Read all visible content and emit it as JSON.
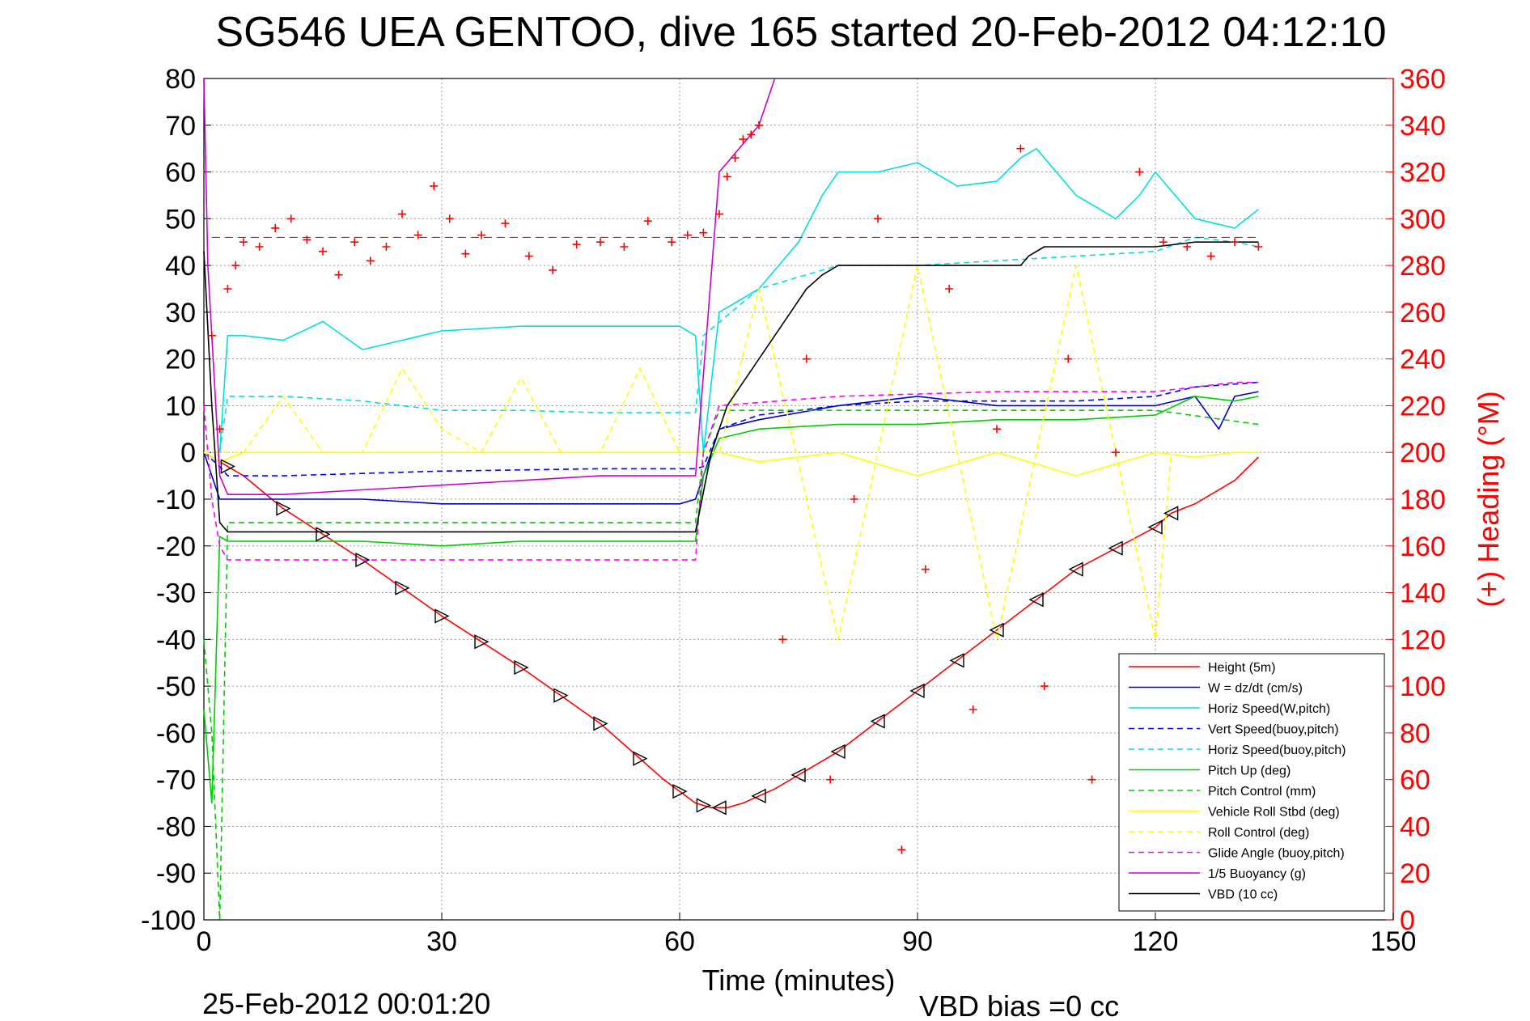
{
  "chart_data": {
    "type": "line",
    "title": "SG546 UEA GENTOO, dive 165 started 20-Feb-2012 04:12:10",
    "xlabel": "Time (minutes)",
    "ylabel": "",
    "y2label": "(+) Heading (°M)",
    "xlim": [
      0,
      150
    ],
    "ylim": [
      -100,
      80
    ],
    "y2lim": [
      0,
      360
    ],
    "xticks": [
      "0",
      "30",
      "60",
      "90",
      "120",
      "150"
    ],
    "yticks": [
      "80",
      "70",
      "60",
      "50",
      "40",
      "30",
      "20",
      "10",
      "0",
      "-10",
      "-20",
      "-30",
      "-40",
      "-50",
      "-60",
      "-70",
      "-80",
      "-90",
      "-100"
    ],
    "y2ticks": [
      "360",
      "340",
      "320",
      "300",
      "280",
      "260",
      "240",
      "220",
      "200",
      "180",
      "160",
      "140",
      "120",
      "100",
      "80",
      "60",
      "40",
      "20",
      "0"
    ],
    "grid": true,
    "legend_position": "bottom-right",
    "footer_date": "25-Feb-2012 00:01:20",
    "footer_bias": "VBD bias =0 cc",
    "series": [
      {
        "name": "Height (5m)",
        "color": "#ff0000",
        "style": "solid",
        "x": [
          0,
          2,
          5,
          10,
          20,
          30,
          40,
          50,
          58,
          62,
          64,
          66,
          68,
          72,
          80,
          90,
          100,
          110,
          120,
          122,
          125,
          130,
          133
        ],
        "y": [
          0,
          -2,
          -5,
          -12,
          -23,
          -35,
          -46,
          -58,
          -70,
          -75,
          -76,
          -76,
          -75,
          -72,
          -64,
          -51,
          -38,
          -25,
          -16,
          -13,
          -11,
          -6,
          -1
        ]
      },
      {
        "name": "W = dz/dt (cm/s)",
        "color": "#0000cc",
        "style": "solid",
        "x": [
          0,
          1,
          2,
          5,
          10,
          20,
          30,
          40,
          50,
          60,
          62,
          63,
          65,
          70,
          80,
          90,
          100,
          110,
          120,
          125,
          128,
          130,
          133
        ],
        "y": [
          0,
          -5,
          -10,
          -10,
          -10,
          -10,
          -11,
          -11,
          -11,
          -11,
          -10,
          -5,
          5,
          7,
          10,
          12,
          10,
          10,
          10,
          12,
          5,
          12,
          13
        ]
      },
      {
        "name": "Horiz Speed(W,pitch)",
        "color": "#00e0e0",
        "style": "solid",
        "x": [
          2,
          3,
          5,
          10,
          15,
          20,
          25,
          30,
          40,
          50,
          60,
          62,
          63,
          65,
          70,
          75,
          78,
          80,
          85,
          90,
          95,
          100,
          103,
          105,
          110,
          115,
          118,
          120,
          125,
          130,
          133
        ],
        "y": [
          0,
          25,
          25,
          24,
          28,
          22,
          24,
          26,
          27,
          27,
          27,
          25,
          0,
          30,
          35,
          45,
          55,
          60,
          60,
          62,
          57,
          58,
          63,
          65,
          55,
          50,
          55,
          60,
          50,
          48,
          52
        ]
      },
      {
        "name": "Vert Speed(buoy,pitch)",
        "color": "#0000ff",
        "style": "dashed",
        "x": [
          0,
          2,
          3,
          10,
          30,
          50,
          62,
          63,
          65,
          70,
          80,
          90,
          100,
          110,
          120,
          125,
          133
        ],
        "y": [
          0,
          -3,
          -5,
          -5,
          -4,
          -3.5,
          -3.5,
          -3,
          5,
          8,
          10,
          11,
          11,
          11,
          12,
          14,
          15
        ]
      },
      {
        "name": "Horiz Speed(buoy,pitch)",
        "color": "#00e0e0",
        "style": "dashed",
        "x": [
          2,
          3,
          10,
          20,
          30,
          40,
          50,
          62,
          63,
          70,
          80,
          90,
          100,
          110,
          120,
          125,
          130,
          133
        ],
        "y": [
          0,
          12,
          12,
          11,
          9,
          9,
          8.5,
          8.5,
          25,
          35,
          40,
          40,
          41,
          42,
          43,
          46,
          45,
          44
        ]
      },
      {
        "name": "Pitch Up (deg)",
        "color": "#00cc00",
        "style": "solid",
        "x": [
          0,
          1,
          2,
          3,
          5,
          10,
          20,
          30,
          40,
          50,
          60,
          62,
          63,
          65,
          70,
          80,
          90,
          100,
          110,
          120,
          125,
          130,
          133
        ],
        "y": [
          -55,
          -75,
          -18,
          -19,
          -19,
          -19,
          -19,
          -20,
          -19,
          -19,
          -19,
          -19,
          -5,
          3,
          5,
          6,
          6,
          7,
          7,
          8,
          12,
          11,
          12
        ]
      },
      {
        "name": "Pitch Control (mm)",
        "color": "#00cc00",
        "style": "dashed",
        "x": [
          0,
          1,
          2,
          3,
          5,
          20,
          40,
          62,
          63,
          65,
          80,
          100,
          120,
          133
        ],
        "y": [
          -40,
          -60,
          -100,
          -15,
          -15,
          -15,
          -15,
          -15,
          0,
          9,
          9,
          9,
          9,
          6
        ]
      },
      {
        "name": "Vehicle Roll Stbd (deg)",
        "color": "#ffff00",
        "style": "solid",
        "x": [
          0,
          2,
          5,
          10,
          20,
          30,
          40,
          50,
          60,
          62,
          65,
          70,
          80,
          90,
          100,
          110,
          120,
          125,
          130,
          133
        ],
        "y": [
          0,
          -2,
          0,
          0,
          0,
          0,
          0,
          0,
          0,
          0,
          0,
          -2,
          0,
          -5,
          0,
          -5,
          0,
          -1,
          0,
          0
        ]
      },
      {
        "name": "Roll Control (deg)",
        "color": "#ffff00",
        "style": "dashed",
        "x": [
          0,
          5,
          10,
          15,
          20,
          25,
          30,
          35,
          40,
          45,
          50,
          55,
          60,
          62,
          65,
          70,
          80,
          90,
          100,
          110,
          120,
          122
        ],
        "y": [
          0,
          0,
          12,
          0,
          0,
          18,
          5,
          0,
          16,
          0,
          0,
          18,
          0,
          0,
          0,
          35,
          -40,
          40,
          -40,
          40,
          -40,
          0
        ]
      },
      {
        "name": "Glide Angle (buoy,pitch)",
        "color": "#ff00ff",
        "style": "dashed",
        "x": [
          0,
          1,
          2,
          3,
          5,
          20,
          40,
          62,
          63,
          65,
          80,
          100,
          120,
          130,
          133
        ],
        "y": [
          10,
          -10,
          -20,
          -23,
          -23,
          -23,
          -23,
          -23,
          0,
          10,
          12,
          13,
          13,
          15,
          15
        ]
      },
      {
        "name": "1/5 Buoyancy (g)",
        "color": "#cc00cc",
        "style": "solid",
        "x": [
          0,
          0.5,
          2,
          3,
          10,
          30,
          50,
          62,
          65,
          70,
          72
        ],
        "y": [
          80,
          40,
          -5,
          -9,
          -9,
          -7,
          -5,
          -5,
          60,
          70,
          80
        ]
      },
      {
        "name": "VBD (10 cc)",
        "color": "#000000",
        "style": "solid",
        "x": [
          0,
          1,
          2,
          3,
          5,
          62,
          64,
          66,
          68,
          70,
          72,
          74,
          76,
          78,
          80,
          85,
          95,
          103,
          104,
          106,
          120,
          125,
          130,
          133
        ],
        "y": [
          43,
          10,
          -15,
          -17,
          -17,
          -17,
          0,
          10,
          15,
          20,
          25,
          30,
          35,
          38,
          40,
          40,
          40,
          40,
          42,
          44,
          44,
          45,
          45,
          45
        ]
      }
    ],
    "heading_series": {
      "name": "(+) Heading",
      "color": "#ff0000",
      "marker": "+",
      "reference_heading": 292,
      "x": [
        1,
        2,
        3,
        4,
        5,
        7,
        9,
        11,
        13,
        15,
        17,
        19,
        21,
        23,
        25,
        27,
        29,
        31,
        33,
        35,
        38,
        41,
        44,
        47,
        50,
        53,
        56,
        59,
        61,
        63,
        65,
        66,
        67,
        68,
        69,
        70,
        73,
        76,
        79,
        82,
        85,
        88,
        91,
        94,
        97,
        100,
        103,
        106,
        109,
        112,
        115,
        118,
        121,
        124,
        127,
        130,
        133
      ],
      "y": [
        250,
        210,
        270,
        280,
        290,
        288,
        296,
        300,
        291,
        286,
        276,
        290,
        282,
        288,
        302,
        293,
        314,
        300,
        285,
        293,
        298,
        284,
        278,
        289,
        290,
        288,
        299,
        290,
        293,
        294,
        302,
        318,
        326,
        334,
        336,
        340,
        120,
        240,
        60,
        180,
        300,
        30,
        150,
        270,
        90,
        210,
        330,
        100,
        240,
        60,
        200,
        320,
        290,
        288,
        284,
        290,
        288
      ]
    },
    "markers": {
      "color": "#000000",
      "down_x": [
        3,
        10,
        15,
        20,
        25,
        30,
        35,
        40,
        45,
        50,
        55,
        60,
        63
      ],
      "up_x": [
        65,
        70,
        75,
        80,
        85,
        90,
        95,
        100,
        105,
        110,
        115,
        120,
        122
      ]
    }
  }
}
